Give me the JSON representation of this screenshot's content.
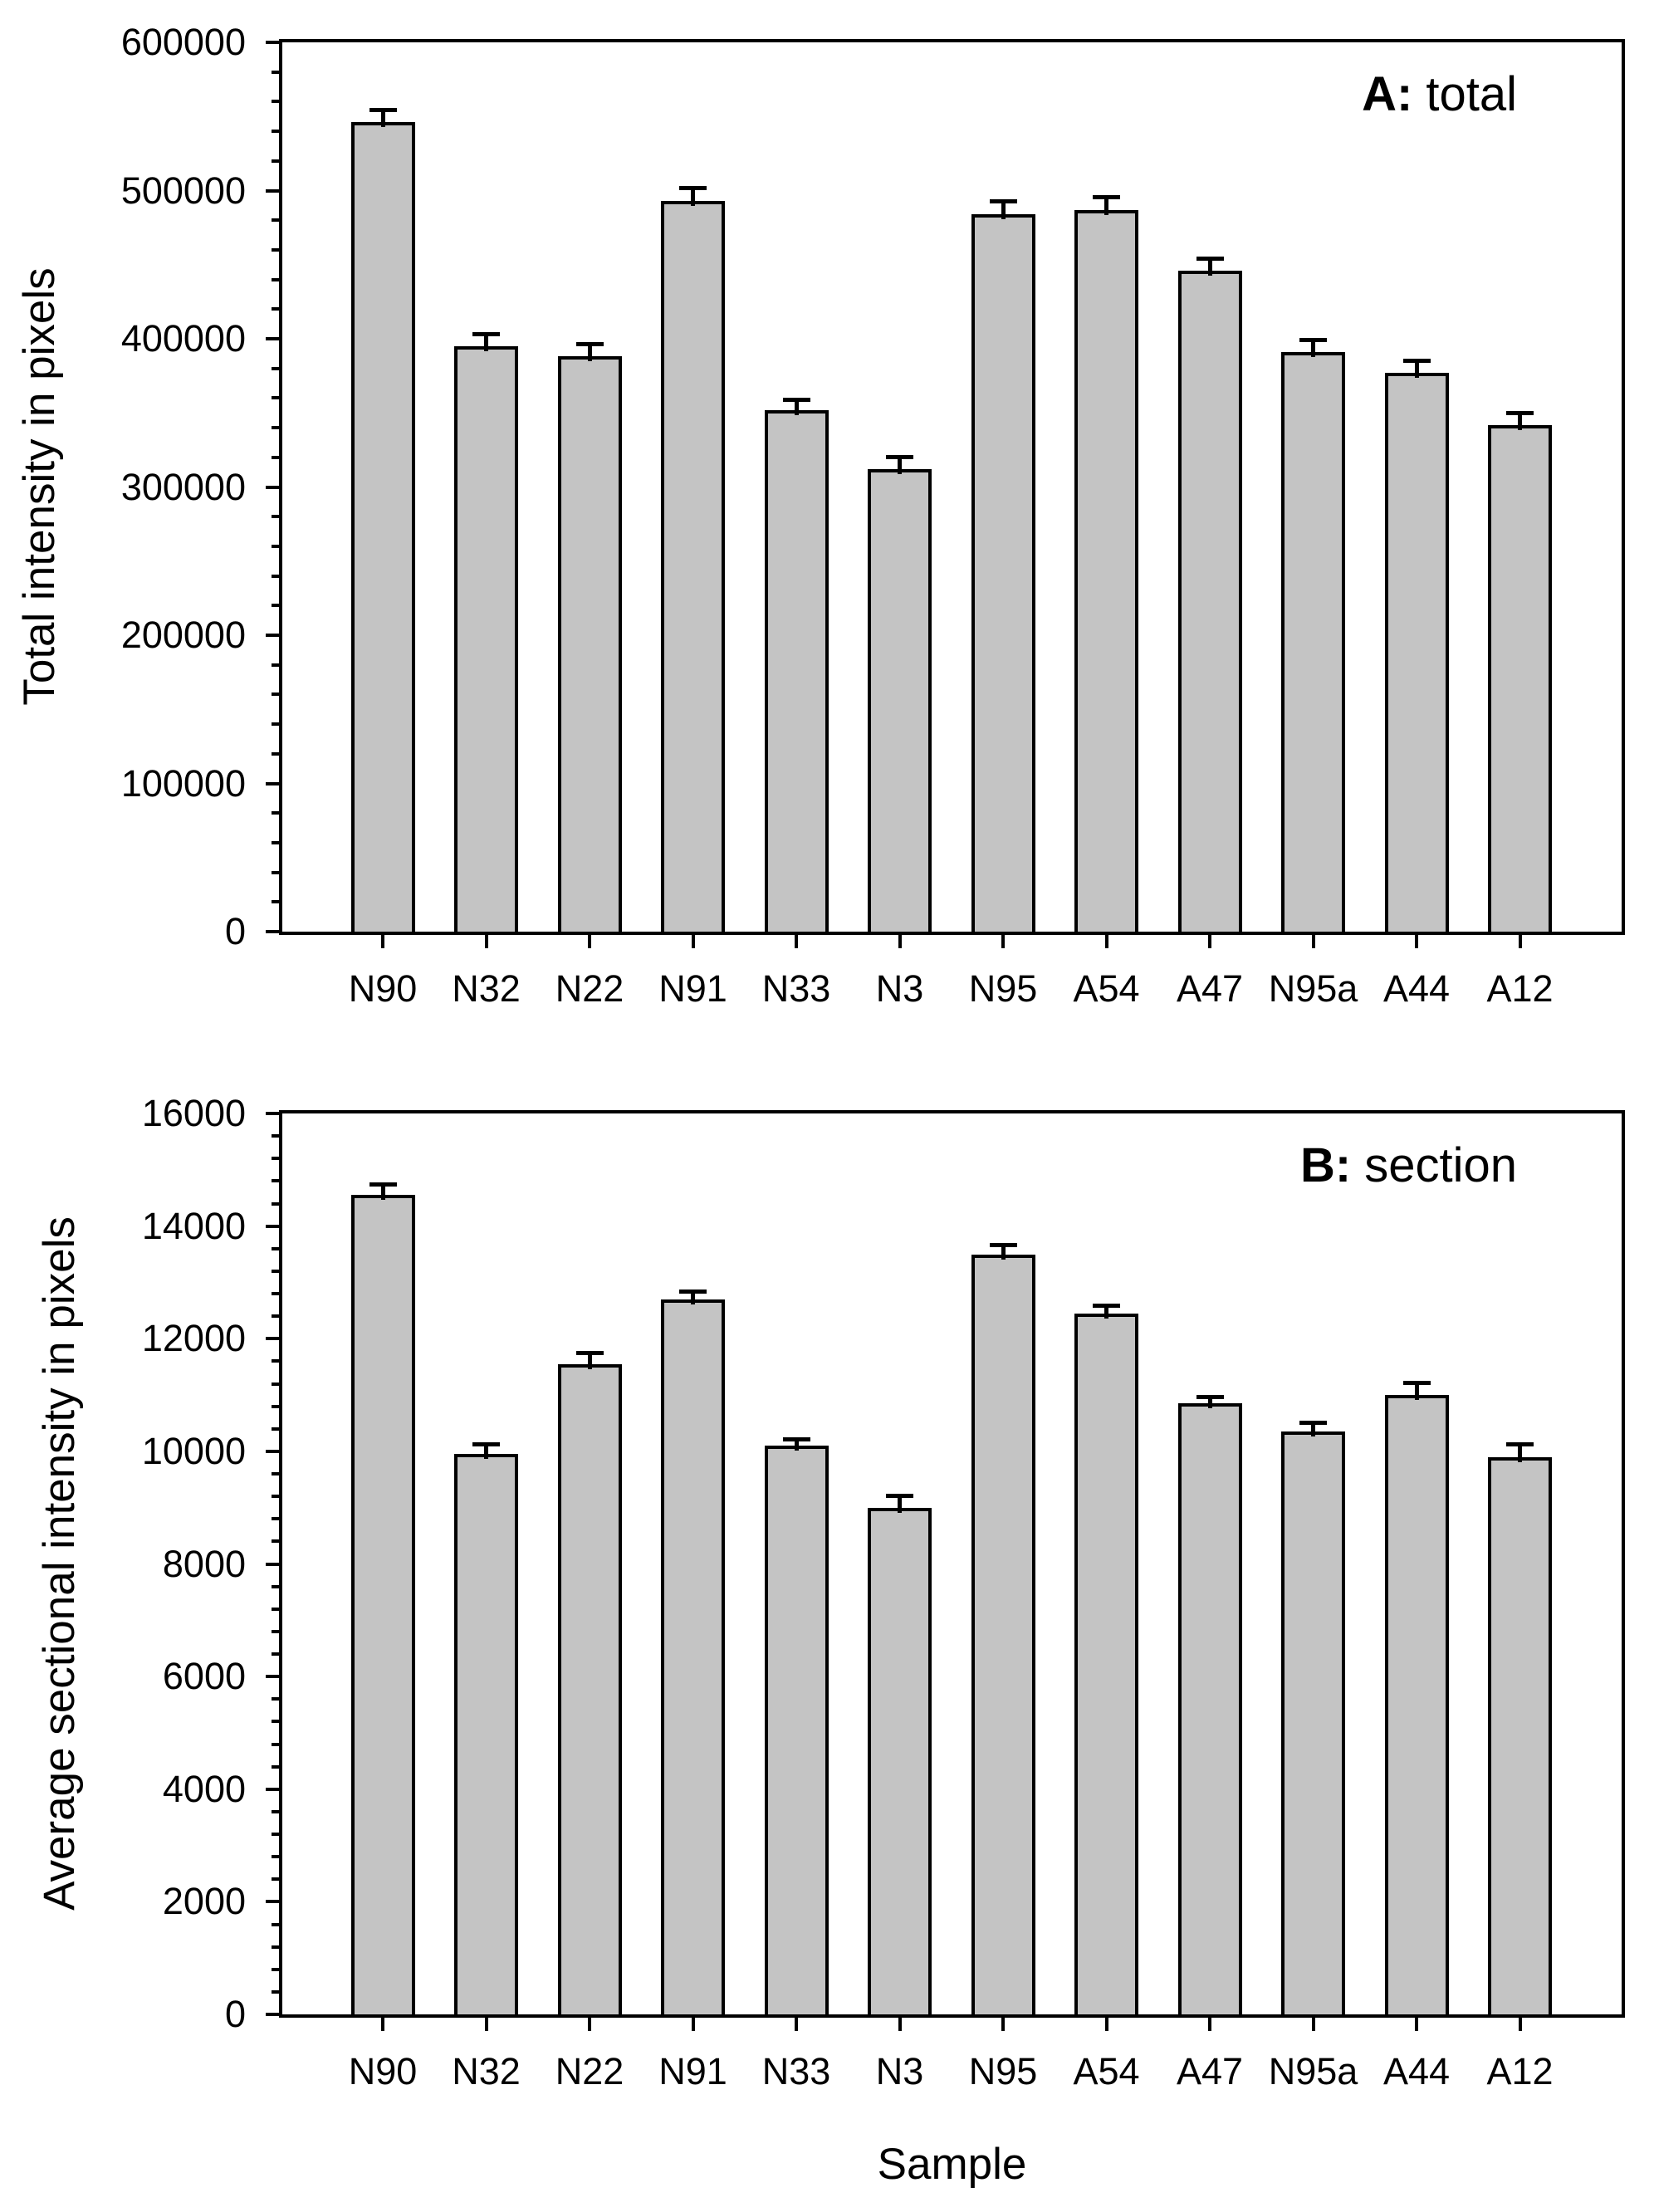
{
  "figure": {
    "background": "#ffffff",
    "bar_fill": "#c4c4c4",
    "bar_border": "#000000",
    "axis_color": "#000000",
    "text_color": "#000000"
  },
  "chart_data": [
    {
      "type": "bar",
      "panel_label_bold": "A:",
      "panel_label_text": "total",
      "title": "A: total",
      "ylabel": "Total intensity in pixels",
      "xlabel": "",
      "categories": [
        "N90",
        "N32",
        "N22",
        "N91",
        "N33",
        "N3",
        "N95",
        "A54",
        "A47",
        "N95a",
        "A44",
        "A12"
      ],
      "values": [
        546000,
        395000,
        388000,
        493000,
        352000,
        312000,
        484000,
        487000,
        446000,
        391000,
        377000,
        342000
      ],
      "errors_plus": [
        10000,
        9300,
        9800,
        10000,
        8500,
        9500,
        10000,
        9800,
        9500,
        9500,
        9500,
        9500
      ],
      "ylim": [
        0,
        600000
      ],
      "ytick_interval": 100000,
      "yticks": [
        "0",
        "100000",
        "200000",
        "300000",
        "400000",
        "500000",
        "600000"
      ],
      "minor_ticks_per_interval": 4,
      "grid": false,
      "legend": "none",
      "error_bars": "upper"
    },
    {
      "type": "bar",
      "panel_label_bold": "B:",
      "panel_label_text": "section",
      "title": "B: section",
      "ylabel": "Average sectional intensity in pixels",
      "xlabel": "Sample",
      "categories": [
        "N90",
        "N32",
        "N22",
        "N91",
        "N33",
        "N3",
        "N95",
        "A54",
        "A47",
        "N95a",
        "A44",
        "A12"
      ],
      "values": [
        14550,
        9950,
        11550,
        12700,
        10100,
        9000,
        13500,
        12450,
        10850,
        10350,
        11000,
        9900
      ],
      "errors_plus": [
        230,
        210,
        240,
        180,
        150,
        250,
        200,
        180,
        150,
        200,
        250,
        260
      ],
      "ylim": [
        0,
        16000
      ],
      "ytick_interval": 2000,
      "yticks": [
        "0",
        "2000",
        "4000",
        "6000",
        "8000",
        "10000",
        "12000",
        "14000",
        "16000"
      ],
      "minor_ticks_per_interval": 4,
      "grid": false,
      "legend": "none",
      "error_bars": "upper"
    }
  ]
}
